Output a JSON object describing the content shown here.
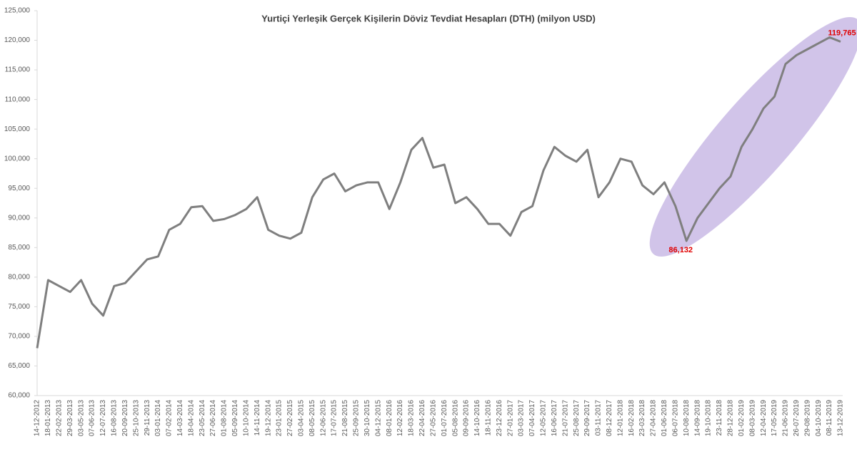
{
  "chart_data": {
    "type": "line",
    "title": "Yurtiçi Yerleşik Gerçek Kişilerin Döviz Tevdiat Hesapları (DTH) (milyon USD)",
    "categories": [
      "14-12-2012",
      "18-01-2013",
      "22-02-2013",
      "29-03-2013",
      "03-05-2013",
      "07-06-2013",
      "12-07-2013",
      "16-08-2013",
      "20-09-2013",
      "25-10-2013",
      "29-11-2013",
      "03-01-2014",
      "07-02-2014",
      "14-03-2014",
      "18-04-2014",
      "23-05-2014",
      "27-06-2014",
      "01-08-2014",
      "05-09-2014",
      "10-10-2014",
      "14-11-2014",
      "19-12-2014",
      "23-01-2015",
      "27-02-2015",
      "03-04-2015",
      "08-05-2015",
      "12-06-2015",
      "17-07-2015",
      "21-08-2015",
      "25-09-2015",
      "30-10-2015",
      "04-12-2015",
      "08-01-2016",
      "12-02-2016",
      "18-03-2016",
      "22-04-2016",
      "27-05-2016",
      "01-07-2016",
      "05-08-2016",
      "09-09-2016",
      "14-10-2016",
      "18-11-2016",
      "23-12-2016",
      "27-01-2017",
      "03-03-2017",
      "07-04-2017",
      "12-05-2017",
      "16-06-2017",
      "21-07-2017",
      "25-08-2017",
      "29-09-2017",
      "03-11-2017",
      "08-12-2017",
      "12-01-2018",
      "16-02-2018",
      "23-03-2018",
      "27-04-2018",
      "01-06-2018",
      "06-07-2018",
      "10-08-2018",
      "14-09-2018",
      "19-10-2018",
      "23-11-2018",
      "28-12-2018",
      "01-02-2019",
      "08-03-2019",
      "12-04-2019",
      "17-05-2019",
      "21-06-2019",
      "26-07-2019",
      "29-08-2019",
      "04-10-2019",
      "08-11-2019",
      "13-12-2019"
    ],
    "series": [
      {
        "color": "#7f7f7f",
        "values": [
          68000,
          79500,
          78500,
          77500,
          79500,
          75500,
          73500,
          78500,
          79000,
          81000,
          83000,
          83500,
          88000,
          89000,
          91800,
          92000,
          89500,
          89800,
          90500,
          91500,
          93500,
          88000,
          87000,
          86500,
          87500,
          93500,
          96500,
          97500,
          94500,
          95500,
          96000,
          96000,
          91500,
          96000,
          101500,
          103500,
          98500,
          99000,
          92500,
          93500,
          91500,
          89000,
          89000,
          87000,
          91000,
          92000,
          98000,
          102000,
          100500,
          99500,
          101500,
          93500,
          96000,
          100000,
          99500,
          95500,
          94000,
          96000,
          92000,
          86132,
          90000,
          92500,
          95000,
          97000,
          102000,
          105000,
          108500,
          110500,
          116000,
          117500,
          118500,
          119500,
          120500,
          119765
        ],
        "value_labels": [
          null,
          null,
          null,
          null,
          null,
          null,
          null,
          null,
          null,
          null,
          null,
          null,
          null,
          null,
          null,
          null,
          null,
          null,
          null,
          null,
          null,
          null,
          null,
          null,
          null,
          null,
          null,
          null,
          null,
          null,
          null,
          null,
          null,
          null,
          null,
          null,
          null,
          null,
          null,
          null,
          null,
          null,
          null,
          null,
          null,
          null,
          null,
          null,
          null,
          null,
          null,
          null,
          null,
          null,
          null,
          null,
          null,
          null,
          null,
          "86,132",
          null,
          null,
          null,
          null,
          null,
          null,
          null,
          null,
          null,
          null,
          null,
          null,
          null,
          "119,765"
        ]
      }
    ],
    "ylim": [
      60000,
      125000
    ],
    "yticks": [
      {
        "value": 60000,
        "label": "60,000"
      },
      {
        "value": 65000,
        "label": "65,000"
      },
      {
        "value": 70000,
        "label": "70,000"
      },
      {
        "value": 75000,
        "label": "75,000"
      },
      {
        "value": 80000,
        "label": "80,000"
      },
      {
        "value": 85000,
        "label": "85,000"
      },
      {
        "value": 90000,
        "label": "90,000"
      },
      {
        "value": 95000,
        "label": "95,000"
      },
      {
        "value": 100000,
        "label": "100,000"
      },
      {
        "value": 105000,
        "label": "105,000"
      },
      {
        "value": 110000,
        "label": "110,000"
      },
      {
        "value": 115000,
        "label": "115,000"
      },
      {
        "value": 120000,
        "label": "120,000"
      },
      {
        "value": 125000,
        "label": "125,000"
      }
    ]
  }
}
